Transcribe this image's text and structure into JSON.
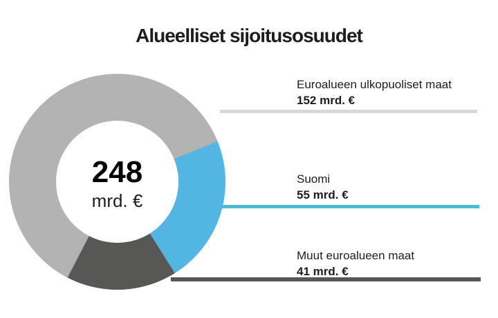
{
  "title": "Alueelliset sijoitusosuudet",
  "chart_data": {
    "type": "pie",
    "subtype": "donut",
    "title": "Alueelliset sijoitusosuudet",
    "unit": "mrd. €",
    "center_total": {
      "value": "248",
      "unit_label": "mrd. €"
    },
    "start_angle_deg": 68,
    "draw_order": [
      1,
      2,
      0
    ],
    "legend_position": "right",
    "segments": [
      {
        "label": "Euroalueen ulkopuoliset maat",
        "value": 152,
        "value_label": "152 mrd. €",
        "color": "#b3b3b3",
        "line_color": "#d7d7d7"
      },
      {
        "label": "Suomi",
        "value": 55,
        "value_label": "55 mrd. €",
        "color": "#53b5e2",
        "line_color": "#4fbcd1"
      },
      {
        "label": "Muut euroalueen maat",
        "value": 41,
        "value_label": "41 mrd. €",
        "color": "#575756",
        "line_color": "#575756"
      }
    ]
  }
}
